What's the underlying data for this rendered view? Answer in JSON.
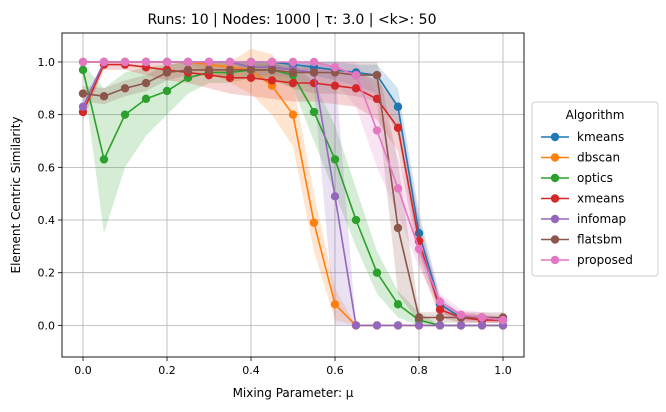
{
  "chart_data": {
    "type": "line",
    "title": "Runs: 10 | Nodes: 1000 | τ: 3.0 | <k>: 50",
    "xlabel": "Mixing Parameter: μ",
    "ylabel": "Element Centric Similarity",
    "xlim": [
      -0.05,
      1.05
    ],
    "ylim": [
      -0.12,
      1.11
    ],
    "xticks": [
      "0.0",
      "0.2",
      "0.4",
      "0.6",
      "0.8",
      "1.0"
    ],
    "yticks": [
      "0.0",
      "0.2",
      "0.4",
      "0.6",
      "0.8",
      "1.0"
    ],
    "grid": true,
    "legend_title": "Algorithm",
    "legend_position": "outside-right",
    "x": [
      0.0,
      0.05,
      0.1,
      0.15,
      0.2,
      0.25,
      0.3,
      0.35,
      0.4,
      0.45,
      0.5,
      0.55,
      0.6,
      0.65,
      0.7,
      0.75,
      0.8,
      0.85,
      0.9,
      0.95,
      1.0
    ],
    "series": [
      {
        "name": "kmeans",
        "color": "#1f77b4",
        "values": [
          1.0,
          1.0,
          1.0,
          1.0,
          1.0,
          1.0,
          1.0,
          1.0,
          1.0,
          1.0,
          0.99,
          0.98,
          0.97,
          0.96,
          0.95,
          0.83,
          0.35,
          0.08,
          0.03,
          0.03,
          0.02
        ],
        "lower": [
          1.0,
          1.0,
          1.0,
          1.0,
          1.0,
          1.0,
          1.0,
          0.99,
          0.99,
          0.98,
          0.97,
          0.95,
          0.93,
          0.91,
          0.88,
          0.72,
          0.27,
          0.05,
          0.02,
          0.02,
          0.01
        ],
        "upper": [
          1.0,
          1.0,
          1.0,
          1.0,
          1.0,
          1.0,
          1.0,
          1.0,
          1.0,
          1.0,
          1.0,
          1.0,
          1.0,
          0.99,
          0.99,
          0.9,
          0.43,
          0.11,
          0.04,
          0.04,
          0.03
        ]
      },
      {
        "name": "dbscan",
        "color": "#ff7f0e",
        "values": [
          1.0,
          1.0,
          1.0,
          1.0,
          1.0,
          1.0,
          0.99,
          0.98,
          0.97,
          0.91,
          0.8,
          0.39,
          0.08,
          0.0,
          0.0,
          0.0,
          0.0,
          0.0,
          0.0,
          0.0,
          0.0
        ],
        "lower": [
          1.0,
          1.0,
          1.0,
          1.0,
          1.0,
          0.99,
          0.96,
          0.92,
          0.88,
          0.8,
          0.68,
          0.28,
          0.02,
          0.0,
          0.0,
          0.0,
          0.0,
          0.0,
          0.0,
          0.0,
          0.0
        ],
        "upper": [
          1.0,
          1.0,
          1.0,
          1.0,
          1.0,
          1.0,
          1.0,
          1.0,
          1.05,
          1.03,
          0.92,
          0.5,
          0.14,
          0.0,
          0.0,
          0.0,
          0.0,
          0.0,
          0.0,
          0.0,
          0.0
        ]
      },
      {
        "name": "optics",
        "color": "#2ca02c",
        "values": [
          0.97,
          0.63,
          0.8,
          0.86,
          0.89,
          0.94,
          0.96,
          0.96,
          0.97,
          0.97,
          0.95,
          0.81,
          0.63,
          0.4,
          0.2,
          0.08,
          0.02,
          0.0,
          0.0,
          0.0,
          0.0
        ],
        "lower": [
          0.95,
          0.35,
          0.6,
          0.72,
          0.8,
          0.88,
          0.92,
          0.92,
          0.94,
          0.94,
          0.9,
          0.7,
          0.5,
          0.3,
          0.12,
          0.03,
          0.0,
          0.0,
          0.0,
          0.0,
          0.0
        ],
        "upper": [
          0.99,
          0.9,
          0.96,
          0.98,
          0.99,
          1.0,
          1.0,
          1.0,
          1.0,
          1.0,
          1.0,
          0.92,
          0.76,
          0.52,
          0.28,
          0.13,
          0.05,
          0.0,
          0.0,
          0.0,
          0.0
        ]
      },
      {
        "name": "xmeans",
        "color": "#d62728",
        "values": [
          0.81,
          0.99,
          0.99,
          0.98,
          0.97,
          0.96,
          0.95,
          0.94,
          0.94,
          0.93,
          0.92,
          0.92,
          0.91,
          0.9,
          0.86,
          0.75,
          0.32,
          0.06,
          0.03,
          0.02,
          0.02
        ],
        "lower": [
          0.78,
          0.97,
          0.97,
          0.95,
          0.93,
          0.92,
          0.9,
          0.88,
          0.87,
          0.86,
          0.85,
          0.85,
          0.84,
          0.83,
          0.78,
          0.66,
          0.24,
          0.03,
          0.01,
          0.01,
          0.01
        ],
        "upper": [
          0.84,
          1.0,
          1.0,
          1.0,
          1.0,
          1.0,
          1.0,
          0.99,
          0.99,
          0.99,
          0.98,
          0.98,
          0.97,
          0.96,
          0.93,
          0.84,
          0.4,
          0.09,
          0.05,
          0.04,
          0.03
        ]
      },
      {
        "name": "infomap",
        "color": "#9467bd",
        "values": [
          0.83,
          1.0,
          1.0,
          1.0,
          1.0,
          1.0,
          1.0,
          1.0,
          0.98,
          0.98,
          0.97,
          0.96,
          0.49,
          0.0,
          0.0,
          0.0,
          0.0,
          0.0,
          0.0,
          0.0,
          0.0
        ],
        "lower": [
          0.8,
          1.0,
          1.0,
          1.0,
          1.0,
          1.0,
          1.0,
          1.0,
          0.95,
          0.95,
          0.94,
          0.9,
          0.0,
          0.0,
          0.0,
          0.0,
          0.0,
          0.0,
          0.0,
          0.0,
          0.0
        ],
        "upper": [
          0.86,
          1.0,
          1.0,
          1.0,
          1.0,
          1.0,
          1.0,
          1.0,
          1.0,
          1.0,
          1.0,
          1.0,
          0.98,
          0.0,
          0.0,
          0.0,
          0.0,
          0.0,
          0.0,
          0.0,
          0.0
        ]
      },
      {
        "name": "flatsbm",
        "color": "#8c564b",
        "values": [
          0.88,
          0.87,
          0.9,
          0.92,
          0.96,
          0.97,
          0.97,
          0.97,
          0.97,
          0.97,
          0.96,
          0.96,
          0.96,
          0.95,
          0.95,
          0.37,
          0.03,
          0.03,
          0.03,
          0.03,
          0.03
        ],
        "lower": [
          0.85,
          0.84,
          0.87,
          0.89,
          0.93,
          0.95,
          0.95,
          0.94,
          0.94,
          0.93,
          0.9,
          0.88,
          0.88,
          0.87,
          0.85,
          0.12,
          0.01,
          0.01,
          0.01,
          0.01,
          0.01
        ],
        "upper": [
          0.91,
          0.9,
          0.93,
          0.95,
          0.99,
          1.0,
          1.0,
          1.0,
          1.0,
          1.0,
          1.0,
          1.0,
          1.0,
          1.0,
          1.0,
          0.62,
          0.05,
          0.05,
          0.05,
          0.05,
          0.05
        ]
      },
      {
        "name": "proposed",
        "color": "#e377c2",
        "values": [
          1.0,
          1.0,
          1.0,
          1.0,
          1.0,
          1.0,
          1.0,
          1.0,
          1.0,
          1.0,
          1.0,
          1.0,
          0.98,
          0.95,
          0.74,
          0.52,
          0.29,
          0.09,
          0.04,
          0.03,
          0.02
        ],
        "lower": [
          1.0,
          1.0,
          1.0,
          1.0,
          1.0,
          1.0,
          1.0,
          1.0,
          1.0,
          1.0,
          1.0,
          0.98,
          0.93,
          0.83,
          0.6,
          0.42,
          0.22,
          0.06,
          0.02,
          0.01,
          0.01
        ],
        "upper": [
          1.0,
          1.0,
          1.0,
          1.0,
          1.0,
          1.0,
          1.0,
          1.0,
          1.0,
          1.0,
          1.0,
          1.0,
          1.0,
          1.0,
          0.88,
          0.64,
          0.37,
          0.12,
          0.06,
          0.05,
          0.04
        ]
      }
    ]
  }
}
